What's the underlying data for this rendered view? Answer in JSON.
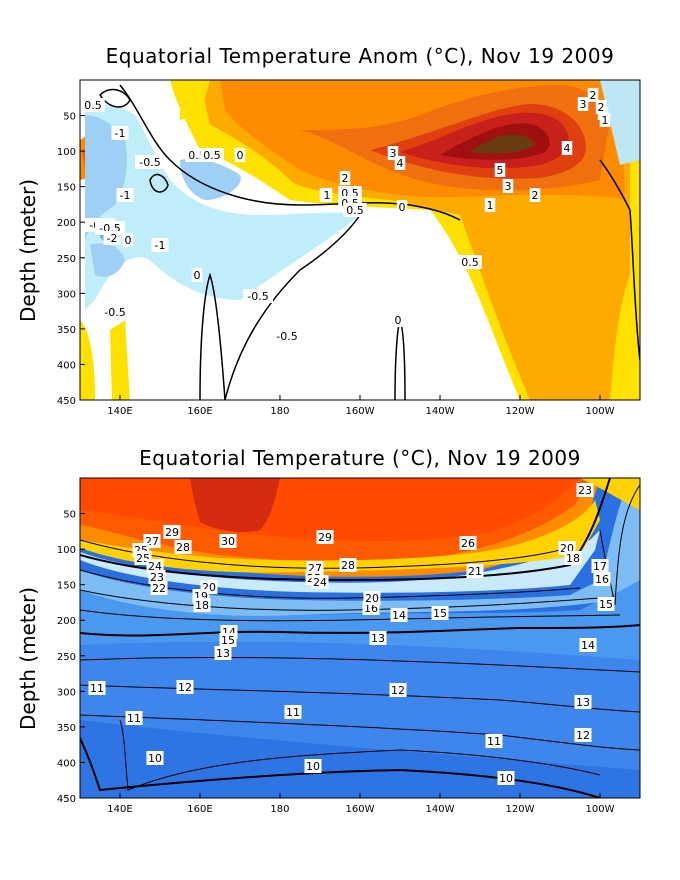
{
  "chart_data": [
    {
      "type": "heatmap",
      "title": "Equatorial Temperature Anom (°C), Nov 19 2009",
      "ylabel": "Depth (meter)",
      "x_ticks": [
        "140E",
        "160E",
        "180",
        "160W",
        "140W",
        "120W",
        "100W"
      ],
      "y_ticks": [
        50,
        100,
        150,
        200,
        250,
        300,
        350,
        400,
        450
      ],
      "ylim": [
        450,
        0
      ],
      "contour_labels": [
        "0.5",
        "-1",
        "-0.5",
        "0.5",
        "0.5",
        "0",
        "-1",
        "-0.5",
        "-0.5",
        "-2",
        "-0.5",
        "-1",
        "0",
        "-0.5",
        "-0.5",
        "0",
        "0",
        "0",
        "2",
        "1",
        "0.5",
        "0.5",
        "0",
        "1",
        "2",
        "3",
        "4",
        "3",
        "4",
        "5",
        "3",
        "2",
        "3",
        "2",
        "1",
        "0.5",
        "0.5"
      ]
    },
    {
      "type": "heatmap",
      "title": "Equatorial Temperature (°C), Nov 19 2009",
      "ylabel": "Depth (meter)",
      "x_ticks": [
        "140E",
        "160E",
        "180",
        "160W",
        "140W",
        "120W",
        "100W"
      ],
      "y_ticks": [
        50,
        100,
        150,
        200,
        250,
        300,
        350,
        400,
        450
      ],
      "ylim": [
        450,
        0
      ],
      "contour_labels": [
        "29",
        "27",
        "28",
        "25",
        "25",
        "24",
        "23",
        "22",
        "30",
        "29",
        "27",
        "25",
        "24",
        "26",
        "28",
        "20",
        "19",
        "18",
        "16",
        "20",
        "14",
        "15",
        "14",
        "15",
        "13",
        "13",
        "12",
        "11",
        "11",
        "11",
        "12",
        "13",
        "11",
        "12",
        "10",
        "10",
        "10",
        "23",
        "20",
        "18",
        "17",
        "16",
        "15",
        "14",
        "21"
      ]
    }
  ]
}
